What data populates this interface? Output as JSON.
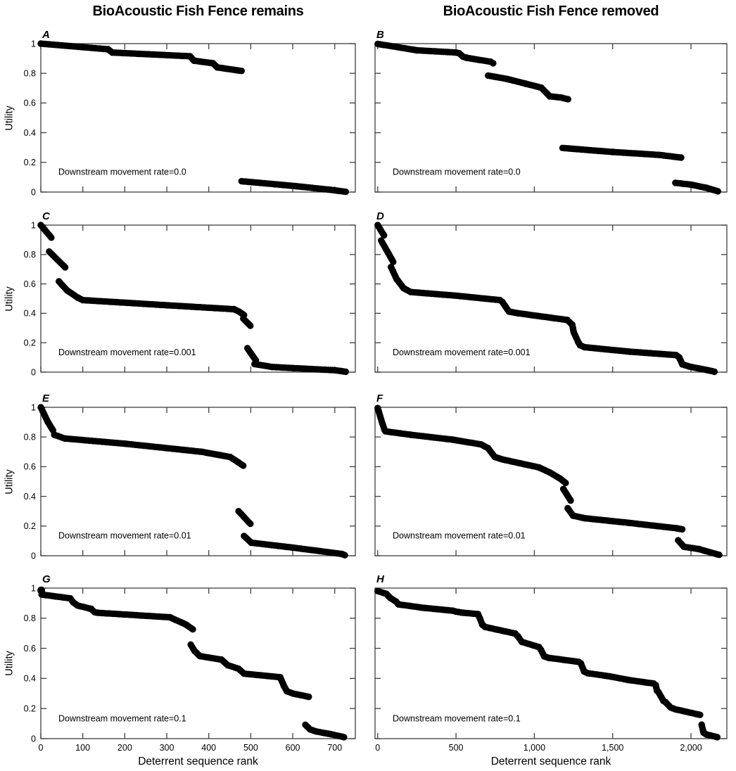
{
  "figure": {
    "column_titles": [
      "BioAcoustic Fish Fence remains",
      "BioAcoustic Fish Fence removed"
    ],
    "x_axis_label": "Deterrent sequence rank",
    "y_axis_label": "Utility",
    "colors": {
      "marker": "#000000",
      "frame": "#3f3f3f",
      "text": "#000000",
      "background": "#ffffff"
    }
  },
  "chart_data": {
    "type": "scatter",
    "marker": {
      "shape": "circle",
      "radius_px": 4.7,
      "color": "#000000"
    },
    "grid": false,
    "panels": [
      {
        "id": "A",
        "col": 0,
        "row": 0,
        "annotation": "Downstream movement rate=0.0",
        "xlim": [
          0,
          749
        ],
        "ylim": [
          0,
          1
        ],
        "x_ticks": [
          0,
          100,
          200,
          300,
          400,
          500,
          600,
          700
        ],
        "x_tick_labels": null,
        "y_ticks": [
          0,
          0.2,
          0.4,
          0.6,
          0.8,
          1
        ],
        "y_tick_labels": [
          "0",
          "0.2",
          "0.4",
          "0.6",
          "0.8",
          "1"
        ],
        "segments": [
          [
            [
              0,
              1.0
            ],
            [
              160,
              0.962
            ],
            [
              170,
              0.94
            ],
            [
              355,
              0.915
            ],
            [
              365,
              0.885
            ],
            [
              410,
              0.868
            ],
            [
              420,
              0.84
            ],
            [
              478,
              0.816
            ]
          ],
          [
            [
              478,
              0.073
            ],
            [
              607,
              0.04
            ],
            [
              690,
              0.015
            ],
            [
              726,
              0.002
            ]
          ]
        ]
      },
      {
        "id": "B",
        "col": 1,
        "row": 0,
        "annotation": "Downstream movement rate=0.0",
        "xlim": [
          -17,
          2229
        ],
        "ylim": [
          0,
          1
        ],
        "x_ticks": [
          0,
          500,
          1000,
          1500,
          2000
        ],
        "x_tick_labels": null,
        "y_ticks": [
          0,
          0.2,
          0.4,
          0.6,
          0.8,
          1
        ],
        "y_tick_labels": null,
        "segments": [
          [
            [
              0,
              0.998
            ],
            [
              250,
              0.955
            ],
            [
              500,
              0.94
            ],
            [
              520,
              0.935
            ],
            [
              545,
              0.912
            ],
            [
              565,
              0.905
            ],
            [
              720,
              0.878
            ],
            [
              737,
              0.868
            ]
          ],
          [
            [
              705,
              0.785
            ],
            [
              825,
              0.762
            ],
            [
              945,
              0.73
            ],
            [
              1045,
              0.703
            ],
            [
              1058,
              0.688
            ],
            [
              1080,
              0.665
            ],
            [
              1098,
              0.645
            ],
            [
              1170,
              0.637
            ],
            [
              1215,
              0.625
            ]
          ],
          [
            [
              1180,
              0.297
            ],
            [
              1500,
              0.27
            ],
            [
              1800,
              0.25
            ],
            [
              1937,
              0.232
            ]
          ],
          [
            [
              1900,
              0.062
            ],
            [
              2000,
              0.05
            ],
            [
              2100,
              0.028
            ],
            [
              2172,
              0.005
            ]
          ]
        ]
      },
      {
        "id": "C",
        "col": 0,
        "row": 1,
        "annotation": "Downstream movement rate=0.001",
        "xlim": [
          0,
          749
        ],
        "ylim": [
          0,
          1
        ],
        "x_ticks": [
          0,
          100,
          200,
          300,
          400,
          500,
          600,
          700
        ],
        "x_tick_labels": null,
        "y_ticks": [
          0,
          0.2,
          0.4,
          0.6,
          0.8,
          1
        ],
        "y_tick_labels": [
          "0",
          "0.2",
          "0.4",
          "0.6",
          "0.8",
          "1"
        ],
        "segments": [
          [
            [
              0,
              1.0
            ],
            [
              25,
              0.915
            ]
          ],
          [
            [
              20,
              0.82
            ],
            [
              58,
              0.713
            ]
          ],
          [
            [
              43,
              0.617
            ],
            [
              63,
              0.555
            ],
            [
              88,
              0.507
            ],
            [
              100,
              0.49
            ],
            [
              300,
              0.455
            ],
            [
              460,
              0.428
            ],
            [
              472,
              0.412
            ],
            [
              484,
              0.388
            ]
          ],
          [
            [
              482,
              0.364
            ],
            [
              499,
              0.316
            ]
          ],
          [
            [
              492,
              0.163
            ],
            [
              512,
              0.08
            ]
          ],
          [
            [
              509,
              0.055
            ],
            [
              551,
              0.035
            ],
            [
              700,
              0.013
            ],
            [
              726,
              0.003
            ]
          ]
        ]
      },
      {
        "id": "D",
        "col": 1,
        "row": 1,
        "annotation": "Downstream movement rate=0.001",
        "xlim": [
          -17,
          2229
        ],
        "ylim": [
          0,
          1
        ],
        "x_ticks": [
          0,
          500,
          1000,
          1500,
          2000
        ],
        "x_tick_labels": null,
        "y_ticks": [
          0,
          0.2,
          0.4,
          0.6,
          0.8,
          1
        ],
        "y_tick_labels": null,
        "segments": [
          [
            [
              0,
              1.0
            ],
            [
              40,
              0.93
            ]
          ],
          [
            [
              22,
              0.895
            ],
            [
              99,
              0.75
            ]
          ],
          [
            [
              85,
              0.715
            ],
            [
              120,
              0.635
            ],
            [
              165,
              0.572
            ],
            [
              210,
              0.545
            ],
            [
              500,
              0.52
            ],
            [
              780,
              0.49
            ],
            [
              795,
              0.478
            ],
            [
              838,
              0.412
            ],
            [
              900,
              0.4
            ],
            [
              1210,
              0.355
            ],
            [
              1242,
              0.322
            ],
            [
              1252,
              0.27
            ],
            [
              1280,
              0.205
            ],
            [
              1292,
              0.183
            ],
            [
              1320,
              0.17
            ],
            [
              1600,
              0.14
            ],
            [
              1905,
              0.116
            ],
            [
              1925,
              0.1
            ],
            [
              1945,
              0.053
            ],
            [
              1990,
              0.038
            ],
            [
              2100,
              0.015
            ],
            [
              2150,
              0.003
            ]
          ]
        ]
      },
      {
        "id": "E",
        "col": 0,
        "row": 2,
        "annotation": "Downstream movement rate=0.01",
        "xlim": [
          0,
          749
        ],
        "ylim": [
          0,
          1
        ],
        "x_ticks": [
          0,
          100,
          200,
          300,
          400,
          500,
          600,
          700
        ],
        "x_tick_labels": null,
        "y_ticks": [
          0,
          0.2,
          0.4,
          0.6,
          0.8,
          1
        ],
        "y_tick_labels": [
          "0",
          "0.2",
          "0.4",
          "0.6",
          "0.8",
          "1"
        ],
        "segments": [
          [
            [
              0,
              1.0
            ],
            [
              17,
              0.9
            ],
            [
              29,
              0.845
            ]
          ],
          [
            [
              32,
              0.815
            ],
            [
              57,
              0.79
            ],
            [
              200,
              0.755
            ],
            [
              384,
              0.7
            ],
            [
              451,
              0.665
            ],
            [
              470,
              0.63
            ],
            [
              482,
              0.607
            ]
          ],
          [
            [
              471,
              0.3
            ],
            [
              499,
              0.215
            ]
          ],
          [
            [
              484,
              0.133
            ],
            [
              501,
              0.088
            ],
            [
              600,
              0.055
            ],
            [
              717,
              0.012
            ],
            [
              724,
              0.004
            ]
          ]
        ]
      },
      {
        "id": "F",
        "col": 1,
        "row": 2,
        "annotation": "Downstream movement rate=0.01",
        "xlim": [
          -17,
          2229
        ],
        "ylim": [
          0,
          1
        ],
        "x_ticks": [
          0,
          500,
          1000,
          1500,
          2000
        ],
        "x_tick_labels": null,
        "y_ticks": [
          0,
          0.2,
          0.4,
          0.6,
          0.8,
          1
        ],
        "y_tick_labels": null,
        "segments": [
          [
            [
              0,
              0.995
            ],
            [
              30,
              0.89
            ],
            [
              45,
              0.845
            ]
          ],
          [
            [
              50,
              0.838
            ],
            [
              210,
              0.815
            ],
            [
              480,
              0.782
            ],
            [
              660,
              0.75
            ],
            [
              704,
              0.725
            ],
            [
              748,
              0.665
            ],
            [
              800,
              0.648
            ],
            [
              1030,
              0.595
            ],
            [
              1100,
              0.56
            ],
            [
              1165,
              0.52
            ],
            [
              1200,
              0.49
            ]
          ],
          [
            [
              1185,
              0.45
            ],
            [
              1232,
              0.372
            ]
          ],
          [
            [
              1213,
              0.32
            ],
            [
              1247,
              0.27
            ],
            [
              1320,
              0.253
            ],
            [
              1600,
              0.222
            ],
            [
              1910,
              0.185
            ],
            [
              1944,
              0.178
            ]
          ],
          [
            [
              1918,
              0.104
            ],
            [
              1955,
              0.06
            ],
            [
              2050,
              0.045
            ],
            [
              2180,
              0.006
            ]
          ]
        ]
      },
      {
        "id": "G",
        "col": 0,
        "row": 3,
        "annotation": "Downstream movement rate=0.1",
        "xlim": [
          0,
          749
        ],
        "ylim": [
          0,
          1
        ],
        "x_ticks": [
          0,
          100,
          200,
          300,
          400,
          500,
          600,
          700
        ],
        "x_tick_labels": [
          "0",
          "100",
          "200",
          "300",
          "400",
          "500",
          "600",
          "700"
        ],
        "y_ticks": [
          0,
          0.2,
          0.4,
          0.6,
          0.8,
          1
        ],
        "y_tick_labels": [
          "0",
          "0.2",
          "0.4",
          "0.6",
          "0.8",
          "1"
        ],
        "segments": [
          [
            [
              1,
              0.985
            ]
          ],
          [
            [
              2,
              0.957
            ],
            [
              70,
              0.932
            ],
            [
              77,
              0.906
            ],
            [
              88,
              0.884
            ],
            [
              120,
              0.862
            ],
            [
              128,
              0.84
            ],
            [
              136,
              0.836
            ],
            [
              308,
              0.806
            ],
            [
              320,
              0.79
            ],
            [
              338,
              0.768
            ],
            [
              346,
              0.757
            ],
            [
              362,
              0.726
            ]
          ],
          [
            [
              357,
              0.625
            ],
            [
              366,
              0.583
            ],
            [
              379,
              0.548
            ],
            [
              430,
              0.525
            ],
            [
              445,
              0.488
            ],
            [
              471,
              0.464
            ],
            [
              484,
              0.432
            ],
            [
              570,
              0.408
            ],
            [
              579,
              0.35
            ],
            [
              586,
              0.315
            ],
            [
              600,
              0.3
            ],
            [
              638,
              0.278
            ]
          ],
          [
            [
              630,
              0.092
            ],
            [
              641,
              0.062
            ],
            [
              655,
              0.048
            ],
            [
              690,
              0.03
            ],
            [
              722,
              0.01
            ]
          ]
        ]
      },
      {
        "id": "H",
        "col": 1,
        "row": 3,
        "annotation": "Downstream movement rate=0.1",
        "xlim": [
          -17,
          2229
        ],
        "ylim": [
          0,
          1
        ],
        "x_ticks": [
          0,
          500,
          1000,
          1500,
          2000
        ],
        "x_tick_labels": [
          "0",
          "500",
          "1,000",
          "1,500",
          "2,000"
        ],
        "y_ticks": [
          0,
          0.2,
          0.4,
          0.6,
          0.8,
          1
        ],
        "y_tick_labels": null,
        "segments": [
          [
            [
              0,
              0.98
            ],
            [
              55,
              0.962
            ],
            [
              80,
              0.935
            ],
            [
              118,
              0.91
            ],
            [
              132,
              0.892
            ],
            [
              300,
              0.868
            ],
            [
              478,
              0.85
            ],
            [
              500,
              0.844
            ],
            [
              532,
              0.838
            ],
            [
              640,
              0.827
            ],
            [
              652,
              0.8
            ],
            [
              668,
              0.757
            ],
            [
              685,
              0.742
            ],
            [
              878,
              0.698
            ],
            [
              895,
              0.68
            ],
            [
              920,
              0.643
            ],
            [
              1030,
              0.608
            ],
            [
              1042,
              0.59
            ],
            [
              1063,
              0.547
            ],
            [
              1090,
              0.537
            ],
            [
              1283,
              0.51
            ],
            [
              1297,
              0.5
            ],
            [
              1318,
              0.446
            ],
            [
              1340,
              0.435
            ],
            [
              1480,
              0.414
            ],
            [
              1600,
              0.39
            ],
            [
              1762,
              0.366
            ],
            [
              1775,
              0.355
            ],
            [
              1783,
              0.318
            ],
            [
              1792,
              0.31
            ],
            [
              1824,
              0.251
            ],
            [
              1836,
              0.244
            ],
            [
              1870,
              0.207
            ],
            [
              1900,
              0.195
            ],
            [
              2058,
              0.158
            ]
          ],
          [
            [
              2068,
              0.093
            ],
            [
              2080,
              0.04
            ],
            [
              2098,
              0.028
            ],
            [
              2168,
              0.01
            ]
          ]
        ]
      }
    ]
  }
}
